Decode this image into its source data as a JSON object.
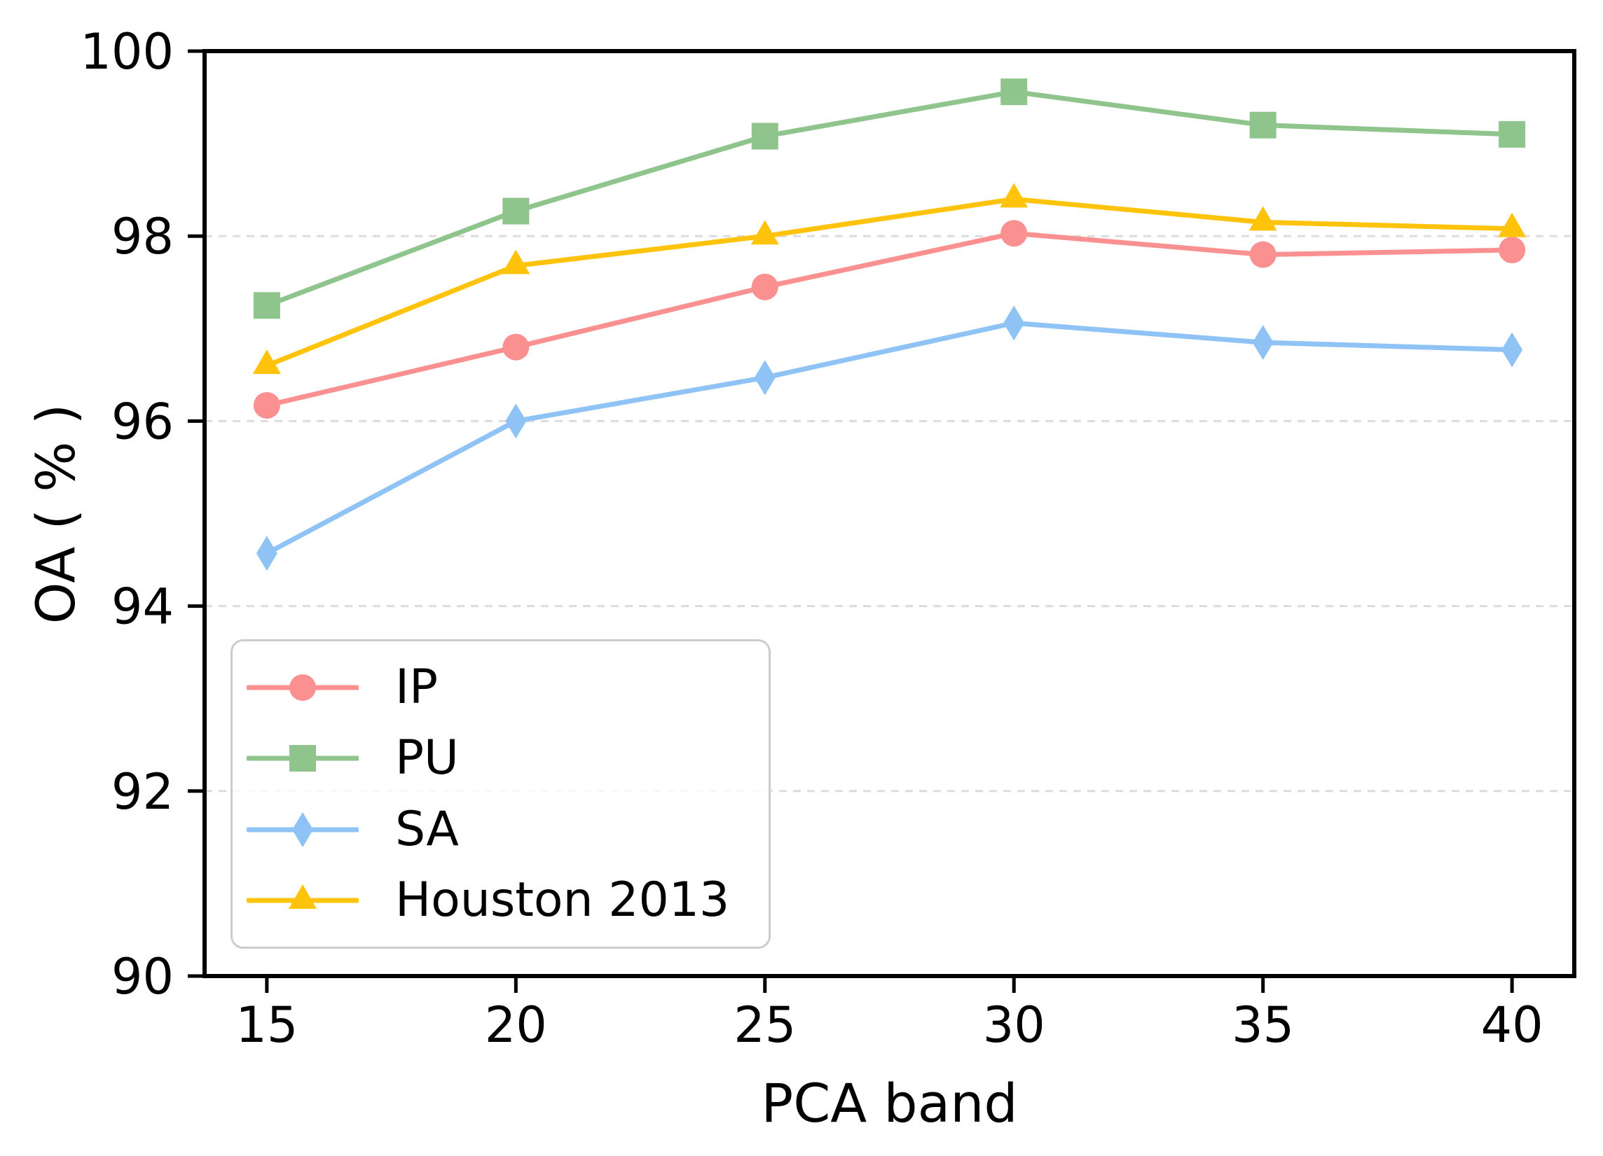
{
  "chart_data": {
    "type": "line",
    "x": [
      15,
      20,
      25,
      30,
      35,
      40
    ],
    "series": [
      {
        "name": "IP",
        "color": "#FA9190",
        "marker": "circle",
        "values": [
          96.17,
          96.8,
          97.45,
          98.03,
          97.8,
          97.85
        ]
      },
      {
        "name": "PU",
        "color": "#8FC58D",
        "marker": "square",
        "values": [
          97.25,
          98.27,
          99.08,
          99.56,
          99.2,
          99.1
        ]
      },
      {
        "name": "SA",
        "color": "#8FC3F5",
        "marker": "diamond",
        "values": [
          94.57,
          96.0,
          96.47,
          97.06,
          96.85,
          96.77
        ]
      },
      {
        "name": "Houston 2013",
        "color": "#FFC30B",
        "marker": "triangle",
        "values": [
          96.6,
          97.68,
          98.0,
          98.4,
          98.15,
          98.08
        ]
      }
    ],
    "xlabel": "PCA band",
    "ylabel": "OA ( % )",
    "xticks": [
      15,
      20,
      25,
      30,
      35,
      40
    ],
    "yticks": [
      90,
      92,
      94,
      96,
      98,
      100
    ],
    "xlim": [
      13.75,
      41.25
    ],
    "ylim": [
      90,
      100
    ],
    "grid": "horizontal-dashed",
    "legend_position": "lower-left"
  },
  "colors": {
    "grid": "#DCDCDC",
    "axis": "#000000",
    "legend_border": "#CCCCCC"
  }
}
